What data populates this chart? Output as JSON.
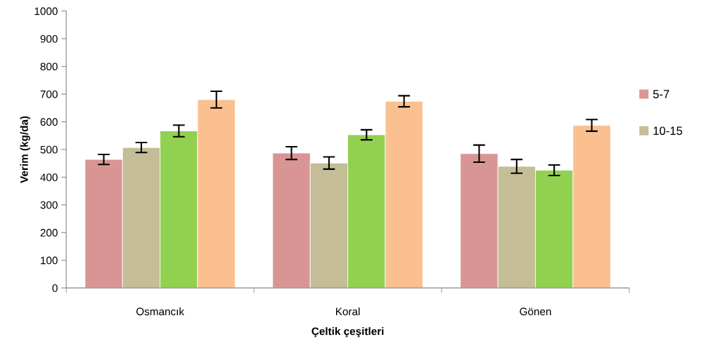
{
  "chart_data": {
    "type": "bar",
    "xlabel": "Çeltik çeşitleri",
    "ylabel": "Verim (kg/da)",
    "categories": [
      "Osmancık",
      "Koral",
      "Gönen"
    ],
    "series": [
      {
        "name": "5-7",
        "color": "#d99594",
        "values": [
          464,
          487,
          485
        ],
        "errors": [
          18,
          23,
          31
        ]
      },
      {
        "name": "10-15",
        "color": "#c4bd97",
        "values": [
          507,
          451,
          439
        ],
        "errors": [
          18,
          22,
          25
        ]
      },
      {
        "color": "#92d050",
        "values": [
          567,
          553,
          425
        ],
        "errors": [
          21,
          18,
          19
        ]
      },
      {
        "color": "#fac090",
        "values": [
          680,
          674,
          587
        ],
        "errors": [
          30,
          20,
          21
        ]
      }
    ],
    "ylim": [
      0,
      1000
    ],
    "yticks": [
      0,
      100,
      200,
      300,
      400,
      500,
      600,
      700,
      800,
      900,
      1000
    ],
    "grid": false,
    "legend": "right"
  }
}
